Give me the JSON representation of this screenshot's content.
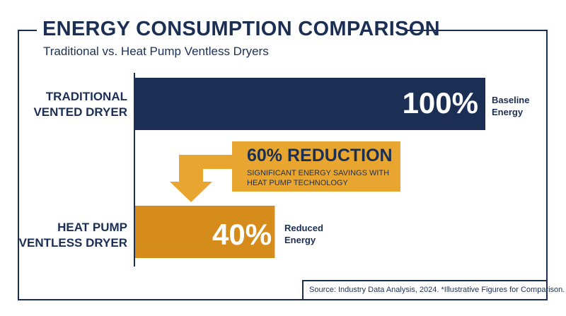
{
  "title": "ENERGY CONSUMPTION COMPARISON",
  "subtitle": "Traditional vs. Heat Pump Ventless Dryers",
  "colors": {
    "navy": "#1b2f55",
    "amber": "#e8a630",
    "dark_amber": "#d58c1a"
  },
  "chart_data": {
    "type": "bar",
    "orientation": "horizontal",
    "categories": [
      "TRADITIONAL\nVENTED DRYER",
      "HEAT PUMP\nVENTLESS DRYER"
    ],
    "values": [
      100,
      40
    ],
    "value_labels": [
      "100%",
      "40%"
    ],
    "bar_notes": [
      "Baseline\nEnergy",
      "Reduced\nEnergy"
    ],
    "bar_colors": [
      "#1b2f55",
      "#d58c1a"
    ],
    "xlim": [
      0,
      100
    ],
    "grid": false
  },
  "callout": {
    "title": "60% REDUCTION",
    "text": "SIGNIFICANT ENERGY SAVINGS WITH\nHEAT PUMP TECHNOLOGY"
  },
  "source": "Source: Industry Data Analysis, 2024. *Illustrative Figures for Comparison."
}
